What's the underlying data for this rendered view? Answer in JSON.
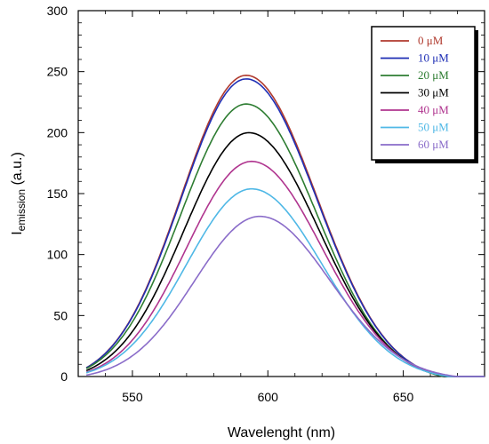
{
  "chart_data": {
    "type": "line",
    "title": "",
    "xlabel": "Wavelenght (nm)",
    "ylabel": {
      "main": "I",
      "subscript": "emission",
      "suffix": " (a.u.)"
    },
    "xlim": [
      530,
      680
    ],
    "ylim": [
      0,
      300
    ],
    "xticks": [
      550,
      600,
      650
    ],
    "yticks": [
      0,
      50,
      100,
      150,
      200,
      250,
      300
    ],
    "grid": false,
    "legend_position": "top-right",
    "series": [
      {
        "name": "0 μM",
        "color": "#b03a2e",
        "peak_x": 592,
        "peak_y": 252
      },
      {
        "name": "10 μM",
        "color": "#1f2fb5",
        "peak_x": 592,
        "peak_y": 249
      },
      {
        "name": "20 μM",
        "color": "#2e7d32",
        "peak_x": 592,
        "peak_y": 228
      },
      {
        "name": "30 μM",
        "color": "#000000",
        "peak_x": 593,
        "peak_y": 204
      },
      {
        "name": "40 μM",
        "color": "#b0358f",
        "peak_x": 594,
        "peak_y": 180
      },
      {
        "name": "50 μM",
        "color": "#4fb8e6",
        "peak_x": 594,
        "peak_y": 157
      },
      {
        "name": "60 μM",
        "color": "#8a6cc9",
        "peak_x": 597,
        "peak_y": 134
      }
    ]
  }
}
